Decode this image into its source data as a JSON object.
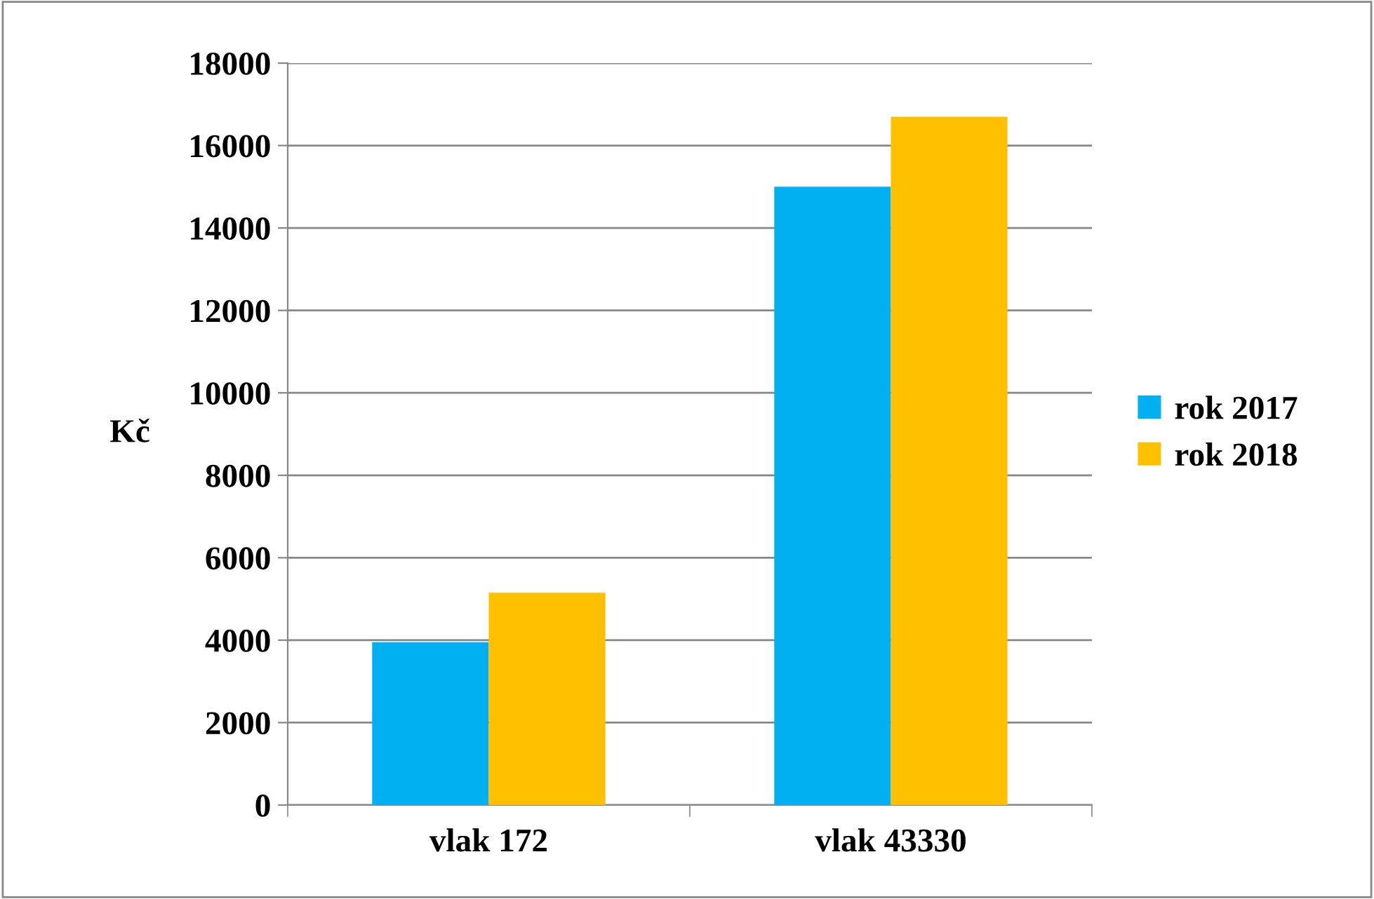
{
  "chart_data": {
    "type": "bar",
    "ylabel": "Kč",
    "categories": [
      "vlak 172",
      "vlak 43330"
    ],
    "series": [
      {
        "name": "rok 2017",
        "color": "#00b0f0",
        "values": [
          3950,
          15000
        ]
      },
      {
        "name": "rok 2018",
        "color": "#ffc000",
        "values": [
          5150,
          16700
        ]
      }
    ],
    "ylim": [
      0,
      18000
    ],
    "yticks": [
      0,
      2000,
      4000,
      6000,
      8000,
      10000,
      12000,
      14000,
      16000,
      18000
    ],
    "grid": "y",
    "legend": "right"
  }
}
